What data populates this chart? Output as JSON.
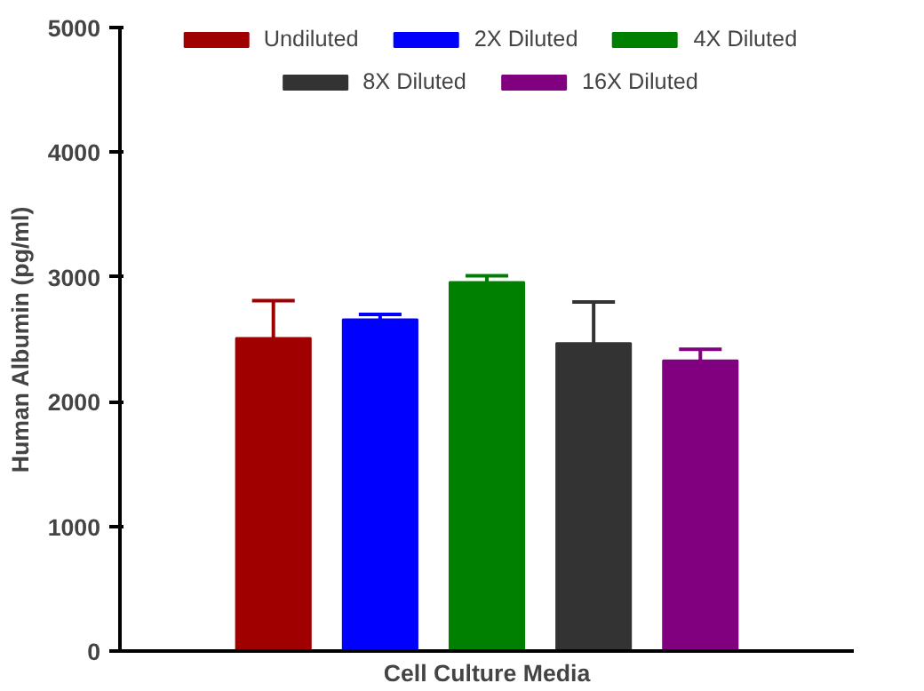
{
  "chart_data": {
    "type": "bar",
    "ylabel": "Human Albumin (pg/ml)",
    "xlabel": "Cell Culture Media",
    "categories": [
      null
    ],
    "series": [
      {
        "name": "Undiluted",
        "color": "#a00000",
        "values": [
          2510
        ],
        "errors": [
          [
            2510,
            2810
          ]
        ]
      },
      {
        "name": "2X Diluted",
        "color": "#0000ff",
        "values": [
          2660
        ],
        "errors": [
          [
            2660,
            2700
          ]
        ]
      },
      {
        "name": "4X Diluted",
        "color": "#008000",
        "values": [
          2960
        ],
        "errors": [
          [
            2960,
            3010
          ]
        ]
      },
      {
        "name": "8X Diluted",
        "color": "#333333",
        "values": [
          2470
        ],
        "errors": [
          [
            2470,
            2800
          ]
        ]
      },
      {
        "name": "16X Diluted",
        "color": "#800080",
        "values": [
          2330
        ],
        "errors": [
          [
            2330,
            2420
          ]
        ]
      }
    ],
    "ylim": [
      0,
      5000
    ],
    "yticks": [
      0,
      1000,
      2000,
      3000,
      4000,
      5000
    ],
    "grid": false,
    "legend": "top"
  }
}
